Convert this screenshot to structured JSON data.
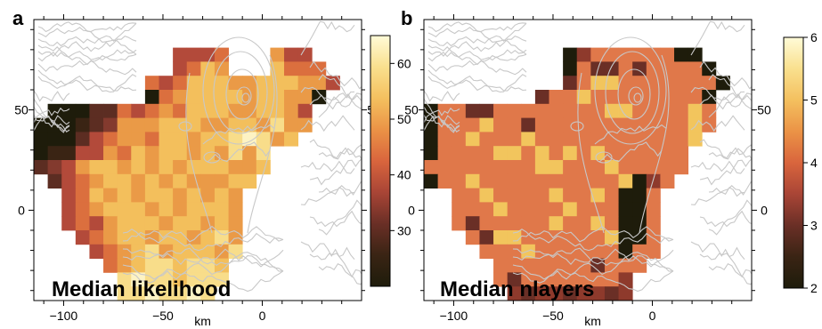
{
  "chart_data": [
    {
      "type": "heatmap",
      "panel_label": "a",
      "title": "Median likelihood",
      "xlabel": "km",
      "ylabel": "",
      "xlim": [
        -115,
        50
      ],
      "ylim": [
        -45,
        95
      ],
      "x_ticks": [
        -100,
        -50,
        0
      ],
      "y_ticks": [
        0,
        50
      ],
      "grid_step_km": 7,
      "grid_origin_km": [
        -115,
        -45
      ],
      "colorbar": {
        "min": 20,
        "max": 65,
        "ticks": [
          30,
          40,
          50,
          60
        ],
        "colormap": "lajolla"
      },
      "rows_top_to_bottom": [
        "......................",
        "..........RRRS...TRR..",
        "..........RSUT...USSS.",
        "........SRSUUUTTUUUTTR",
        "........KSTUUUUTUUTTK.",
        ".KKKMMSRSTSUUUTTUUTR..",
        "KKKLMQTTTUUUTTUUTVTT..",
        "KKKMRSTTSUUTUUVWVTU...",
        "KLLRRTSUTUUTUTVTV.....",
        "MQRTUUTUTUTUUUTTU.....",
        ".MRSTUUTUTUTTTUU......",
        "..RSUTUTUUTUTUT.......",
        "..RSTUUUTUTUUUT.......",
        "..RSRTUUUTUUTUT.......",
        "...RSTUUTUUTUVT.......",
        "....RSTUVTUUUTV.......",
        ".....STUVVUVVU........",
        "......VWVVUVVV........",
        "......VVWVVWV........."
      ],
      "cell_values_key": {
        "K": 22,
        "L": 25,
        "M": 28,
        "Q": 33,
        "R": 38,
        "S": 43,
        "T": 48,
        "U": 53,
        "V": 58,
        "W": 63
      },
      "colors": {
        "K": "#1e1c0b",
        "L": "#3a2414",
        "M": "#5c2d22",
        "Q": "#833a2e",
        "R": "#b34a3a",
        "S": "#db6f3e",
        "T": "#ea9a47",
        "U": "#f3bf5c",
        "V": "#f8dd8a",
        "W": "#fdf3c4"
      }
    },
    {
      "type": "heatmap",
      "panel_label": "b",
      "title": "Median nlayers",
      "xlabel": "km",
      "ylabel": "",
      "xlim": [
        -115,
        50
      ],
      "ylim": [
        -45,
        95
      ],
      "x_ticks": [
        -100,
        -50,
        0
      ],
      "y_ticks": [
        0,
        50
      ],
      "grid_step_km": 7,
      "grid_origin_km": [
        -115,
        -45
      ],
      "colorbar": {
        "min": 2,
        "max": 6,
        "ticks": [
          2,
          3,
          4,
          5,
          6
        ],
        "colormap": "lajolla"
      },
      "rows_top_to_bottom": [
        "......................",
        "..........NNPPPPPPPN..",
        "..........PPMPPMPPPPN.",
        "..........MPPPPPPPPPPN",
        "........NPPPPPPPPPPPN.",
        "NPPMMPPPPPPPPPPPPPPPP.",
        "NPPPPPPPPPPPPPPPPPPPP.",
        "NPPPPPPPPPPPPPPPPPPP..",
        "PPPPPQPPPPPPPPPPPPP...",
        "PPPPPPPPPPPPPPPPPPP...",
        "PPPPPPPPPPPPPPPNNP....",
        "..PPPPPPPPPPPPNNP.....",
        "..PPPPPPPPPPPPNNP.....",
        "..PPPPPPPPPPPPNNP.....",
        "...PPPPPPPPPPPNNP.....",
        "....PPPPPPPPPPPPP.....",
        ".....PPPPPPPPPPP......",
        ".....PNPPPPPPPN.......",
        "......NNNNNNNNN......."
      ],
      "accent_cells": [
        [
          3,
          12,
          "Q"
        ],
        [
          3,
          13,
          "Q"
        ],
        [
          4,
          11,
          "Q"
        ],
        [
          5,
          13,
          "Q"
        ],
        [
          5,
          14,
          "Q"
        ],
        [
          6,
          19,
          "Q"
        ],
        [
          5,
          19,
          "Q"
        ],
        [
          7,
          19,
          "Q"
        ],
        [
          6,
          4,
          "Q"
        ],
        [
          7,
          3,
          "Q"
        ],
        [
          8,
          6,
          "Q"
        ],
        [
          7,
          7,
          "Q"
        ],
        [
          8,
          8,
          "Q"
        ],
        [
          9,
          8,
          "Q"
        ],
        [
          8,
          10,
          "Q"
        ],
        [
          9,
          9,
          "Q"
        ],
        [
          10,
          3,
          "Q"
        ],
        [
          11,
          4,
          "Q"
        ],
        [
          12,
          5,
          "Q"
        ],
        [
          9,
          13,
          "Q"
        ],
        [
          8,
          12,
          "Q"
        ],
        [
          11,
          9,
          "Q"
        ],
        [
          12,
          10,
          "Q"
        ],
        [
          13,
          9,
          "Q"
        ],
        [
          14,
          5,
          "Q"
        ],
        [
          14,
          6,
          "Q"
        ],
        [
          15,
          7,
          "Q"
        ],
        [
          13,
          12,
          "Q"
        ],
        [
          14,
          13,
          "Q"
        ],
        [
          10,
          14,
          "Q"
        ],
        [
          11,
          12,
          "Q"
        ],
        [
          5,
          0,
          "K"
        ],
        [
          6,
          0,
          "K"
        ],
        [
          7,
          0,
          "K"
        ],
        [
          8,
          0,
          "K"
        ],
        [
          10,
          0,
          "K"
        ],
        [
          1,
          10,
          "K"
        ],
        [
          2,
          10,
          "K"
        ],
        [
          1,
          18,
          "K"
        ],
        [
          1,
          19,
          "K"
        ],
        [
          2,
          20,
          "K"
        ],
        [
          3,
          21,
          "K"
        ],
        [
          4,
          20,
          "K"
        ],
        [
          10,
          15,
          "K"
        ],
        [
          11,
          14,
          "K"
        ],
        [
          11,
          15,
          "K"
        ],
        [
          12,
          14,
          "K"
        ],
        [
          12,
          15,
          "K"
        ],
        [
          13,
          14,
          "K"
        ],
        [
          13,
          15,
          "K"
        ],
        [
          14,
          14,
          "K"
        ],
        [
          14,
          15,
          "K"
        ],
        [
          15,
          14,
          "K"
        ],
        [
          2,
          13,
          "M"
        ],
        [
          3,
          10,
          "M"
        ],
        [
          4,
          8,
          "M"
        ],
        [
          6,
          7,
          "M"
        ],
        [
          13,
          3,
          "M"
        ],
        [
          14,
          4,
          "M"
        ],
        [
          17,
          6,
          "M"
        ],
        [
          18,
          7,
          "M"
        ],
        [
          18,
          10,
          "M"
        ],
        [
          18,
          13,
          "M"
        ],
        [
          16,
          12,
          "M"
        ]
      ],
      "cell_values_key": {
        "K": 2,
        "M": 3,
        "N": 3.3,
        "P": 4,
        "Q": 5
      },
      "colors": {
        "K": "#1e1c0b",
        "M": "#6a2f26",
        "N": "#8e3a2c",
        "P": "#e0784a",
        "Q": "#f2c55d"
      }
    }
  ],
  "colors": {
    "coast": "#c8c8c8",
    "axis": "#000000"
  },
  "icons": {
    "coastline": "coastline-outline-icon"
  }
}
